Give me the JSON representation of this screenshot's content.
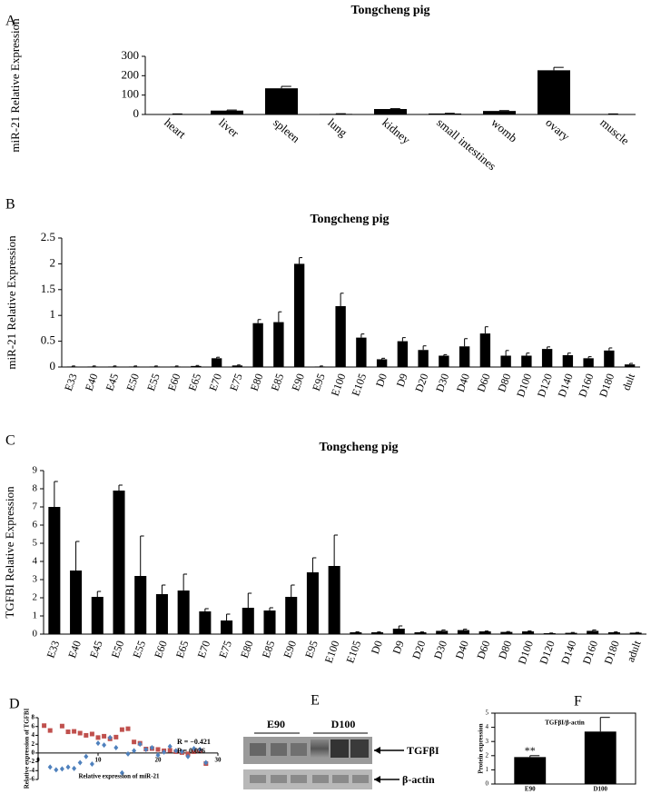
{
  "chart_data": [
    {
      "type": "bar",
      "panel": "A",
      "title": "Tongcheng pig",
      "y_label": "miR-21 Relative Expression",
      "categories": [
        "heart",
        "liver",
        "spleen",
        "lung",
        "kidney",
        "small intestines",
        "womb",
        "ovary",
        "muscle"
      ],
      "values": [
        2,
        20,
        135,
        3,
        28,
        5,
        18,
        228,
        2
      ],
      "errors": [
        1,
        3,
        10,
        1,
        2,
        1,
        2,
        15,
        1
      ],
      "color": "#000000",
      "ylim": [
        0,
        300
      ],
      "yticks": [
        0,
        100,
        200,
        300
      ]
    },
    {
      "type": "bar",
      "panel": "B",
      "title": "Tongcheng pig",
      "y_label": "miR-21 Relative Expression",
      "categories": [
        "E33",
        "E40",
        "E45",
        "E50",
        "E55",
        "E60",
        "E65",
        "E70",
        "E75",
        "E80",
        "E85",
        "E90",
        "E95",
        "E100",
        "E105",
        "D0",
        "D9",
        "D20",
        "D30",
        "D40",
        "D60",
        "D80",
        "D100",
        "D120",
        "D140",
        "D160",
        "D180",
        "dult"
      ],
      "values": [
        0.01,
        0.01,
        0.01,
        0.01,
        0.01,
        0.01,
        0.02,
        0.17,
        0.03,
        0.85,
        0.87,
        2.0,
        0.01,
        1.18,
        0.57,
        0.15,
        0.5,
        0.33,
        0.22,
        0.4,
        0.65,
        0.22,
        0.22,
        0.35,
        0.23,
        0.17,
        0.32,
        0.05
      ],
      "errors": [
        0.01,
        0.01,
        0.01,
        0.01,
        0.01,
        0.01,
        0.01,
        0.02,
        0.01,
        0.07,
        0.2,
        0.12,
        0.01,
        0.25,
        0.07,
        0.02,
        0.07,
        0.08,
        0.02,
        0.15,
        0.13,
        0.1,
        0.05,
        0.04,
        0.04,
        0.03,
        0.05,
        0.02
      ],
      "color": "#000000",
      "ylim": [
        0,
        2.5
      ],
      "yticks": [
        0,
        0.5,
        1,
        1.5,
        2,
        2.5
      ]
    },
    {
      "type": "bar",
      "panel": "C",
      "title": "Tongcheng pig",
      "y_label": "TGFBI Relative Expression",
      "categories": [
        "E33",
        "E40",
        "E45",
        "E50",
        "E55",
        "E60",
        "E65",
        "E70",
        "E75",
        "E80",
        "E85",
        "E90",
        "E95",
        "E100",
        "E105",
        "D0",
        "D9",
        "D20",
        "D30",
        "D40",
        "D60",
        "D80",
        "D100",
        "D120",
        "D140",
        "D160",
        "D180",
        "adult"
      ],
      "values": [
        7.0,
        3.5,
        2.05,
        7.9,
        3.2,
        2.2,
        2.4,
        1.25,
        0.75,
        1.45,
        1.3,
        2.05,
        3.4,
        3.75,
        0.1,
        0.1,
        0.3,
        0.1,
        0.18,
        0.22,
        0.15,
        0.12,
        0.15,
        0.05,
        0.07,
        0.18,
        0.1,
        0.08
      ],
      "errors": [
        1.4,
        1.6,
        0.3,
        0.3,
        2.2,
        0.5,
        0.9,
        0.15,
        0.35,
        0.8,
        0.15,
        0.65,
        0.8,
        1.7,
        0.03,
        0.02,
        0.15,
        0.02,
        0.05,
        0.05,
        0.02,
        0.02,
        0.03,
        0.01,
        0.02,
        0.05,
        0.02,
        0.01
      ],
      "color": "#000000",
      "ylim": [
        0,
        9
      ],
      "yticks": [
        0,
        1,
        2,
        3,
        4,
        5,
        6,
        7,
        8,
        9
      ]
    },
    {
      "type": "scatter",
      "panel": "D",
      "x_label": "Relative expression of miR-21",
      "y_label": "Relative expression of TGFBI",
      "annotations": [
        "R = −0.421",
        "P = 0.026"
      ],
      "series": [
        {
          "color": "#c0504d",
          "marker": "square",
          "x": [
            1,
            2,
            4,
            5,
            6,
            7,
            8,
            9,
            10,
            11,
            12,
            13,
            14,
            15,
            16,
            17,
            18,
            19,
            20,
            21,
            22,
            23,
            24,
            25,
            26,
            27,
            28
          ],
          "values": [
            6.2,
            5.1,
            6.1,
            4.8,
            4.9,
            4.5,
            4.0,
            4.3,
            3.5,
            3.8,
            3.2,
            3.6,
            5.3,
            5.5,
            2.5,
            2.2,
            0.9,
            1.0,
            0.8,
            0.5,
            0.6,
            0.3,
            0.1,
            -0.2,
            0.3,
            0.5,
            -2.4
          ]
        },
        {
          "color": "#4f81bd",
          "marker": "diamond",
          "x": [
            2,
            3,
            4,
            5,
            6,
            7,
            8,
            9,
            10,
            11,
            12,
            13,
            14,
            15,
            16,
            17,
            18,
            19,
            20,
            21,
            22,
            23,
            24,
            25,
            26,
            27,
            28
          ],
          "values": [
            -3.2,
            -3.8,
            -3.6,
            -3.2,
            -3.5,
            -2.2,
            -0.8,
            -2.5,
            2.2,
            1.8,
            3.5,
            1.2,
            -4.5,
            -0.2,
            0.5,
            2.0,
            0.8,
            1.2,
            -0.5,
            0.2,
            1.5,
            0.5,
            0.3,
            -0.8,
            1.0,
            0.8,
            -2.2
          ]
        }
      ],
      "xlim": [
        0,
        30
      ],
      "xticks": [
        0,
        10,
        20,
        30
      ],
      "ylim": [
        -6,
        8
      ],
      "yticks": [
        -6,
        -4,
        -2,
        0,
        2,
        4,
        6,
        8
      ]
    },
    {
      "type": "bar",
      "panel": "F",
      "title": "TGFβI/β-actin",
      "y_label": "Protein expression",
      "categories": [
        "E90",
        "D100"
      ],
      "values": [
        1.9,
        3.7
      ],
      "errors": [
        0.1,
        1.0
      ],
      "significance": [
        "**",
        null
      ],
      "color": "#000000",
      "ylim": [
        0,
        5
      ],
      "yticks": [
        0,
        1,
        2,
        3,
        4,
        5
      ]
    }
  ],
  "blot": {
    "panel": "E",
    "lanes": [
      "E90",
      "D100"
    ],
    "bands": [
      "TGFβI",
      "β-actin"
    ]
  }
}
